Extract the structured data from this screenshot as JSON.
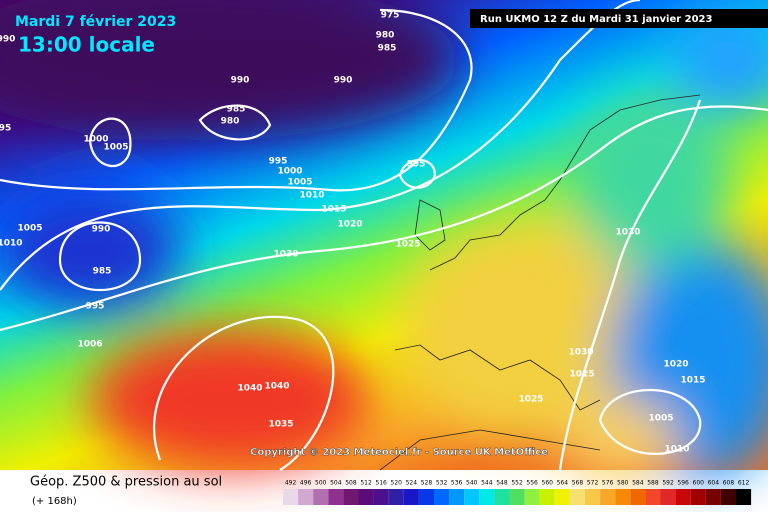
{
  "header": {
    "date": "Mardi 7 février 2023",
    "time": "13:00 locale",
    "run": "Run UKMO 12 Z du Mardi 31 janvier 2023"
  },
  "copyright": "Copyright © 2023 Meteociel.fr - Source UK MetOffice",
  "footer": {
    "title": "Géop. Z500 & pression au sol",
    "lead": "(+ 168h)"
  },
  "isobar_labels": [
    "975",
    "980",
    "985",
    "990",
    "990",
    "985",
    "980",
    "1000",
    "1005",
    "995",
    "1000",
    "1005",
    "1010",
    "1015",
    "1020",
    "1025",
    "995",
    "990",
    "985",
    "995",
    "1030",
    "1030",
    "1030",
    "1025",
    "1025",
    "1040",
    "1040",
    "1035",
    "1020",
    "1015",
    "1005",
    "1010",
    "1010",
    "1005",
    "1006",
    "990",
    "95"
  ],
  "scale": {
    "labels": [
      "492",
      "496",
      "500",
      "504",
      "508",
      "512",
      "516",
      "520",
      "524",
      "528",
      "532",
      "536",
      "540",
      "544",
      "548",
      "552",
      "556",
      "560",
      "564",
      "568",
      "572",
      "576",
      "580",
      "584",
      "588",
      "592",
      "596",
      "600",
      "604",
      "608",
      "612"
    ],
    "colors": [
      "#e8d8e8",
      "#d0a8d0",
      "#b070b0",
      "#903090",
      "#701870",
      "#5a0c78",
      "#4a108e",
      "#3020a8",
      "#1818c8",
      "#0838e8",
      "#0068ff",
      "#0098ff",
      "#00c8ff",
      "#00e8e8",
      "#20e0a0",
      "#50e060",
      "#90f040",
      "#c8f000",
      "#f0f000",
      "#f8e070",
      "#f8c848",
      "#f8a828",
      "#f88808",
      "#f06800",
      "#f04828",
      "#e02828",
      "#c80808",
      "#a00000",
      "#780000",
      "#400000",
      "#000000"
    ]
  }
}
